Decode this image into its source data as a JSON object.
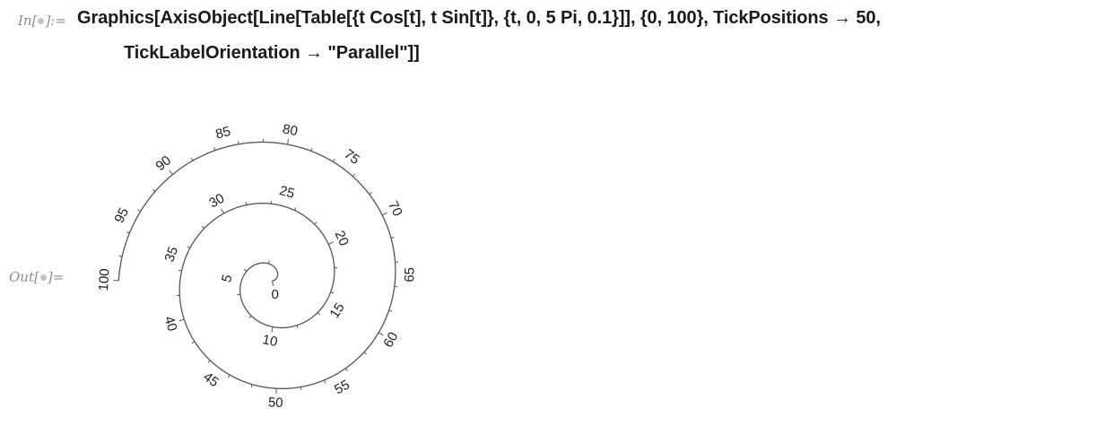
{
  "notebook": {
    "input_label_prefix": "In[",
    "input_label_suffix": "]:=",
    "output_label_prefix": "Out[",
    "output_label_suffix": "]=",
    "input_line_1": "Graphics[AxisObject[Line[Table[{t Cos[t], t Sin[t]}, {t, 0, 5 Pi, 0.1}]], {0, 100}, TickPositions → 50,",
    "input_line_2": "TickLabelOrientation → \"Parallel\"]]"
  },
  "colors": {
    "curve": "#555555",
    "tick_label": "#222222",
    "cell_label": "#8e8e8e",
    "input_text": "#1a1a1a"
  },
  "chart_data": {
    "type": "line",
    "title": "",
    "xlabel": "",
    "ylabel": "",
    "curve": "spiral {t Cos[t], t Sin[t]}, t from 0 to 5π",
    "axis_range": [
      0,
      100
    ],
    "tick_count": 50,
    "tick_label_orientation": "Parallel",
    "tick_labels": [
      "0",
      "5",
      "10",
      "15",
      "20",
      "25",
      "30",
      "35",
      "40",
      "45",
      "50",
      "55",
      "60",
      "65",
      "70",
      "75",
      "80",
      "85",
      "90",
      "95",
      "100"
    ]
  }
}
